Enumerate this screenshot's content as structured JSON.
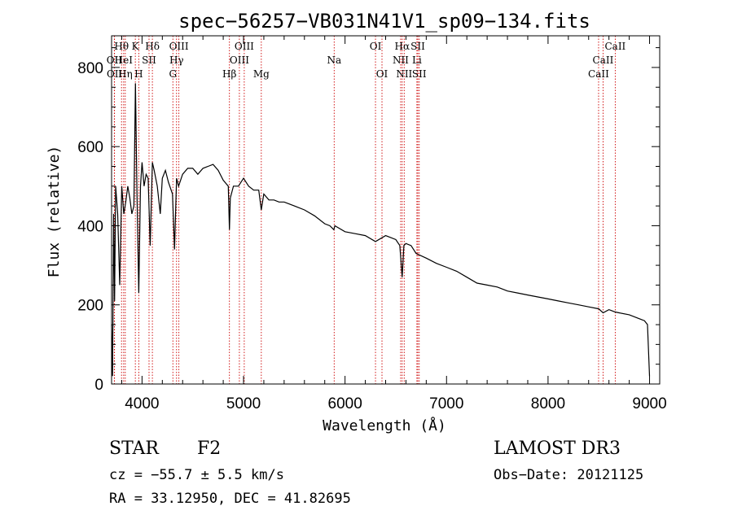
{
  "chart_data": {
    "type": "line",
    "title": "spec−56257−VB031N41V1_sp09−134.fits",
    "xlabel": "Wavelength (Å)",
    "ylabel": "Flux (relative)",
    "xlim": [
      3700,
      9100
    ],
    "ylim": [
      0,
      880
    ],
    "x_ticks": [
      4000,
      5000,
      6000,
      7000,
      8000,
      9000
    ],
    "y_ticks": [
      0,
      200,
      400,
      600,
      800
    ],
    "series": [
      {
        "name": "spectrum",
        "x": [
          3700,
          3710,
          3720,
          3730,
          3740,
          3760,
          3780,
          3800,
          3820,
          3840,
          3860,
          3880,
          3900,
          3920,
          3935,
          3950,
          3968,
          3985,
          4000,
          4020,
          4040,
          4060,
          4080,
          4102,
          4120,
          4150,
          4180,
          4200,
          4230,
          4260,
          4300,
          4320,
          4340,
          4360,
          4400,
          4450,
          4500,
          4550,
          4600,
          4650,
          4700,
          4750,
          4800,
          4850,
          4861,
          4870,
          4900,
          4950,
          5000,
          5050,
          5100,
          5150,
          5175,
          5200,
          5250,
          5300,
          5350,
          5400,
          5450,
          5500,
          5600,
          5700,
          5800,
          5850,
          5890,
          5900,
          6000,
          6100,
          6200,
          6300,
          6400,
          6500,
          6540,
          6563,
          6580,
          6600,
          6650,
          6700,
          6800,
          6900,
          7000,
          7100,
          7200,
          7300,
          7400,
          7500,
          7600,
          7700,
          7800,
          7900,
          8000,
          8100,
          8200,
          8300,
          8400,
          8500,
          8542,
          8600,
          8662,
          8700,
          8800,
          8900,
          8950,
          8980,
          9000
        ],
        "y": [
          150,
          20,
          430,
          210,
          500,
          430,
          250,
          500,
          430,
          460,
          500,
          470,
          430,
          450,
          760,
          480,
          230,
          500,
          560,
          500,
          530,
          520,
          350,
          560,
          540,
          500,
          430,
          520,
          540,
          510,
          480,
          340,
          520,
          500,
          530,
          545,
          545,
          530,
          545,
          550,
          555,
          540,
          515,
          500,
          390,
          470,
          500,
          500,
          520,
          500,
          490,
          490,
          440,
          480,
          465,
          465,
          460,
          460,
          455,
          450,
          440,
          425,
          405,
          400,
          390,
          400,
          385,
          380,
          375,
          360,
          375,
          365,
          350,
          270,
          350,
          355,
          350,
          330,
          318,
          305,
          295,
          285,
          270,
          255,
          250,
          245,
          235,
          230,
          225,
          220,
          215,
          210,
          205,
          200,
          195,
          190,
          180,
          188,
          182,
          180,
          175,
          165,
          160,
          150,
          20
        ]
      }
    ],
    "lines": [
      {
        "label": "OII",
        "x": 3727,
        "row": 2
      },
      {
        "label": "OII",
        "x": 3729,
        "row": 3
      },
      {
        "label": "Hθ",
        "x": 3798,
        "row": 1
      },
      {
        "label": "HeI",
        "x": 3819,
        "row": 2
      },
      {
        "label": "Hη",
        "x": 3835,
        "row": 3
      },
      {
        "label": "K",
        "x": 3934,
        "row": 1
      },
      {
        "label": "SII",
        "x": 4069,
        "row": 2
      },
      {
        "label": "H",
        "x": 3968,
        "row": 3
      },
      {
        "label": "Hδ",
        "x": 4102,
        "row": 1
      },
      {
        "label": "OIII",
        "x": 4363,
        "row": 1
      },
      {
        "label": "Hγ",
        "x": 4340,
        "row": 2
      },
      {
        "label": "G",
        "x": 4304,
        "row": 3
      },
      {
        "label": "Hβ",
        "x": 4861,
        "row": 3
      },
      {
        "label": "OIII",
        "x": 5007,
        "row": 1
      },
      {
        "label": "OIII",
        "x": 4959,
        "row": 2
      },
      {
        "label": "Mg",
        "x": 5175,
        "row": 3
      },
      {
        "label": "Na",
        "x": 5893,
        "row": 2
      },
      {
        "label": "OI",
        "x": 6300,
        "row": 1
      },
      {
        "label": "OI",
        "x": 6364,
        "row": 3
      },
      {
        "label": "Hα",
        "x": 6563,
        "row": 1
      },
      {
        "label": "NII",
        "x": 6548,
        "row": 2
      },
      {
        "label": "NII",
        "x": 6583,
        "row": 3
      },
      {
        "label": "SII",
        "x": 6717,
        "row": 1
      },
      {
        "label": "Li",
        "x": 6708,
        "row": 2
      },
      {
        "label": "SII",
        "x": 6731,
        "row": 3
      },
      {
        "label": "CaII",
        "x": 8662,
        "row": 1
      },
      {
        "label": "CaII",
        "x": 8542,
        "row": 2
      },
      {
        "label": "CaII",
        "x": 8498,
        "row": 3
      }
    ],
    "colors": {
      "line_marker": "#cc0000",
      "spectrum": "#000000"
    }
  },
  "footer": {
    "object_class": "STAR",
    "subclass": "F2",
    "survey": "LAMOST DR3",
    "cz": "cz = −55.7 ± 5.5 km/s",
    "obs_date": "Obs−Date: 20121125",
    "coords": "RA =  33.12950, DEC =  41.82695"
  }
}
